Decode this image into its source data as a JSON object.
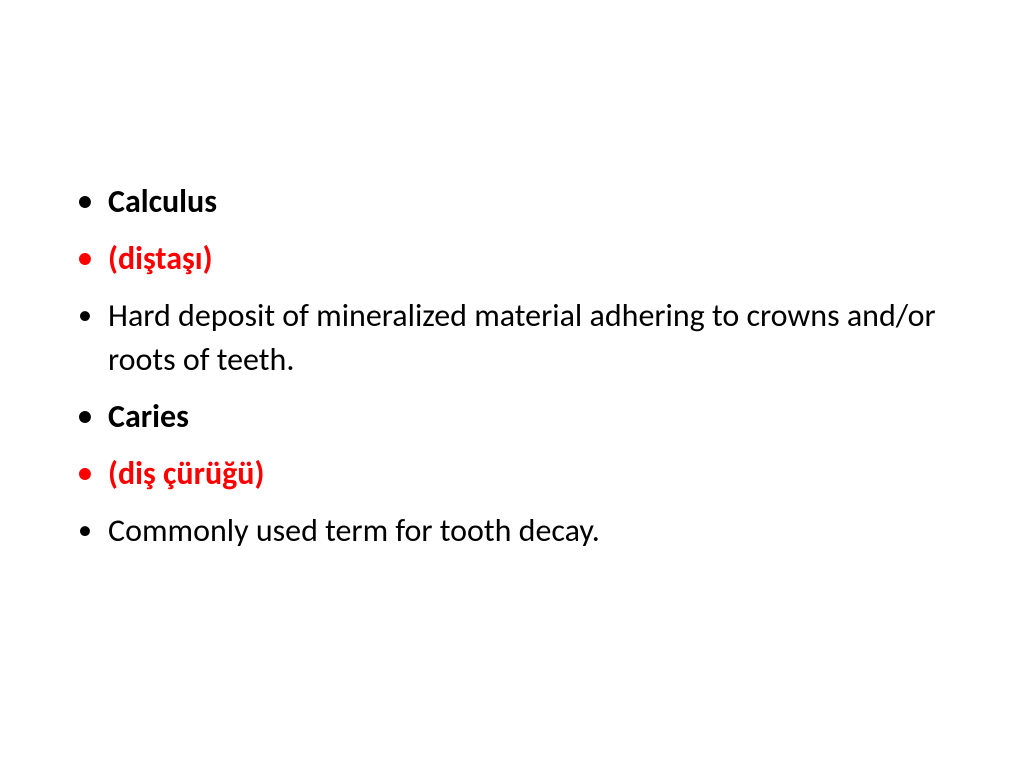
{
  "slide": {
    "items": [
      {
        "text": "Calculus",
        "kind": "term-bold",
        "text_color": "#000000",
        "bullet_color": "#000000"
      },
      {
        "text": "(diştaşı)",
        "kind": "term-red",
        "text_color": "#ff0000",
        "bullet_color": "#ff0000"
      },
      {
        "text": "Hard deposit of mineralized material adhering to crowns and/or roots of teeth.",
        "kind": "definition",
        "text_color": "#000000",
        "bullet_color": "#000000"
      },
      {
        "text": "Caries",
        "kind": "term-bold",
        "text_color": "#000000",
        "bullet_color": "#000000"
      },
      {
        "text": "(diş çürüğü)",
        "kind": "term-red",
        "text_color": "#ff0000",
        "bullet_color": "#ff0000"
      },
      {
        "text": "Commonly used term for tooth decay.",
        "kind": "definition",
        "text_color": "#000000",
        "bullet_color": "#000000"
      }
    ],
    "background_color": "#ffffff",
    "font_family": "Calibri, Arial, sans-serif",
    "font_size_pt": 32,
    "bullet_char": "•"
  }
}
